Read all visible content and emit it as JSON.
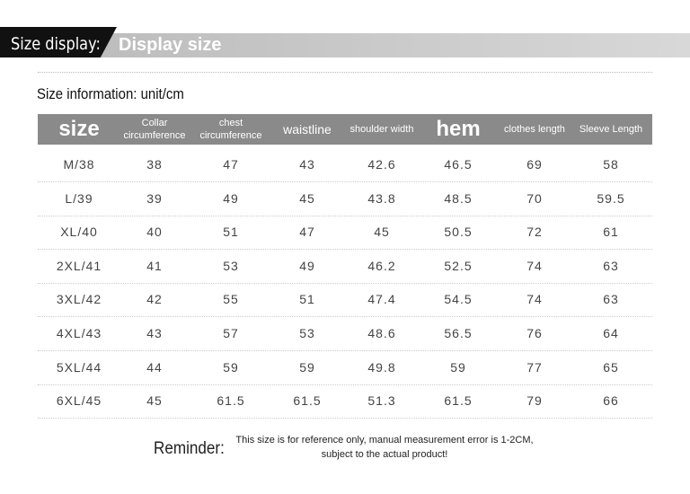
{
  "header": {
    "left": "Size display:",
    "right": "Display size"
  },
  "info": "Size information: unit/cm",
  "table": {
    "headers": [
      "size",
      "Collar circumference",
      "chest circumference",
      "waistline",
      "shoulder width",
      "hem",
      "clothes length",
      "Sleeve Length"
    ],
    "rows": [
      [
        "M/38",
        38,
        47,
        43,
        42.6,
        46.5,
        69,
        58
      ],
      [
        "L/39",
        39,
        49,
        45,
        43.8,
        48.5,
        70,
        59.5
      ],
      [
        "XL/40",
        40,
        51,
        47,
        45,
        50.5,
        72,
        61
      ],
      [
        "2XL/41",
        41,
        53,
        49,
        46.2,
        52.5,
        74,
        63
      ],
      [
        "3XL/42",
        42,
        55,
        51,
        47.4,
        54.5,
        74,
        63
      ],
      [
        "4XL/43",
        43,
        57,
        53,
        48.6,
        56.5,
        76,
        64
      ],
      [
        "5XL/44",
        44,
        59,
        59,
        49.8,
        59,
        77,
        65
      ],
      [
        "6XL/45",
        45,
        61.5,
        61.5,
        51.3,
        61.5,
        79,
        66
      ]
    ]
  },
  "reminder": {
    "label": "Reminder:",
    "text": "This size is for reference only, manual measurement error is 1-2CM, subject to the actual product!"
  }
}
